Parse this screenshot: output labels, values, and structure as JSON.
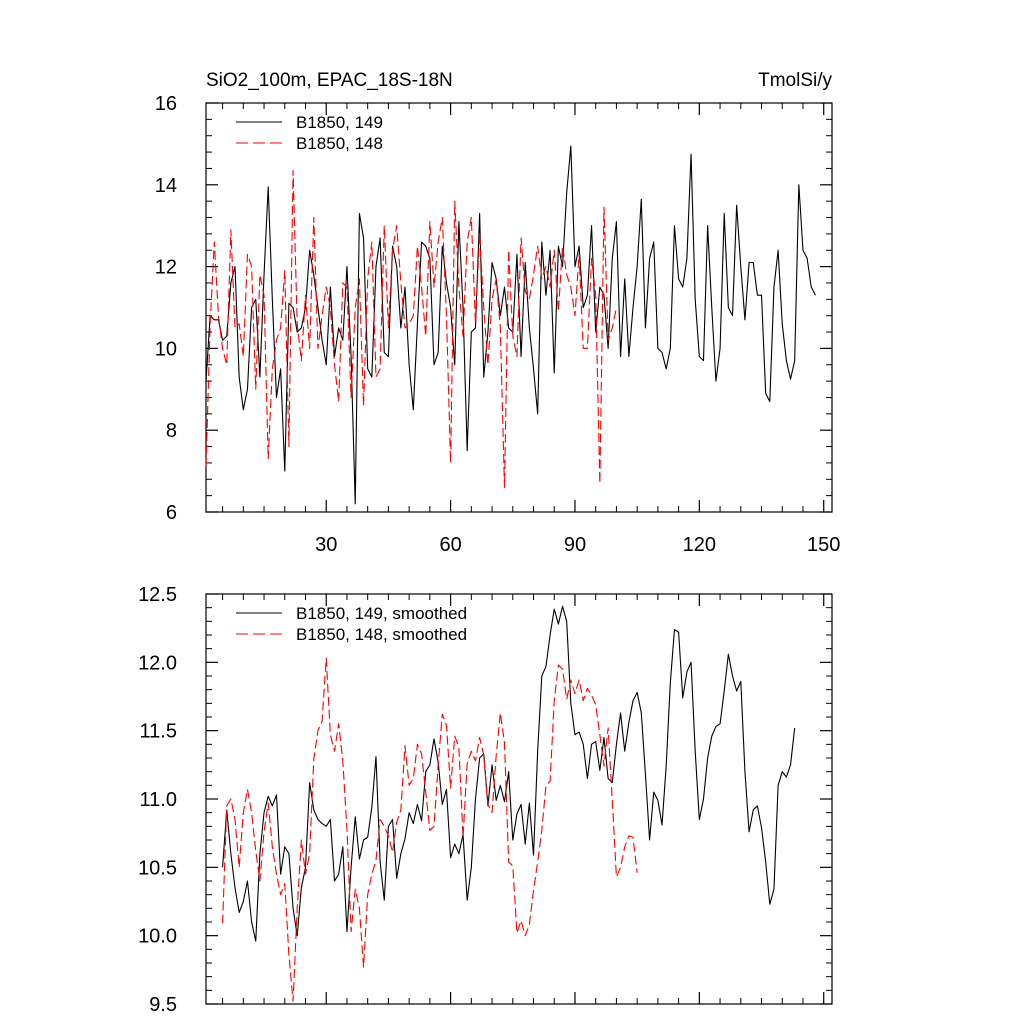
{
  "figure": {
    "title_left": "SiO2_100m, EPAC_18S-18N",
    "title_right": "TmolSi/y"
  },
  "colors": {
    "series_149": "#000000",
    "series_148": "#ff0000",
    "axes": "#000000",
    "background": "#ffffff"
  },
  "chart_data": [
    {
      "type": "line",
      "title": "SiO2_100m, EPAC_18S-18N",
      "units": "TmolSi/y",
      "xlabel": "",
      "ylabel": "",
      "xlim": [
        1,
        152
      ],
      "ylim": [
        6,
        16
      ],
      "x_ticks": [
        30,
        60,
        90,
        120,
        150
      ],
      "x_tick_labels": [
        "30",
        "60",
        "90",
        "120",
        "150"
      ],
      "y_ticks": [
        6,
        8,
        10,
        12,
        14,
        16
      ],
      "y_tick_labels": [
        "6",
        "8",
        "10",
        "12",
        "14",
        "16"
      ],
      "legend_position": "top-left",
      "series": [
        {
          "name": "B1850, 149",
          "color": "#000000",
          "dash": "solid",
          "x_start": 1,
          "values": [
            9.2,
            10.8,
            10.7,
            10.7,
            10.2,
            10.3,
            11.6,
            12.0,
            9.3,
            8.5,
            9.0,
            11.0,
            11.2,
            9.3,
            11.8,
            13.95,
            11.2,
            8.8,
            9.5,
            7.0,
            11.1,
            11.0,
            10.4,
            10.5,
            11.0,
            12.4,
            11.8,
            11.0,
            10.2,
            9.6,
            11.5,
            9.8,
            10.5,
            10.2,
            12.0,
            9.8,
            6.2,
            13.3,
            12.7,
            9.5,
            9.3,
            12.0,
            12.7,
            9.9,
            9.8,
            12.5,
            12.0,
            10.5,
            11.5,
            9.6,
            8.5,
            10.6,
            12.6,
            12.5,
            12.2,
            9.6,
            9.9,
            12.5,
            11.6,
            11.0,
            9.6,
            13.1,
            11.0,
            7.5,
            10.4,
            10.5,
            13.3,
            9.3,
            10.4,
            12.1,
            11.7,
            10.8,
            11.5,
            10.5,
            10.4,
            12.3,
            9.8,
            12.1,
            10.5,
            9.5,
            8.4,
            12.6,
            11.3,
            12.4,
            9.4,
            12.5,
            12.0,
            13.8,
            14.95,
            12.0,
            12.5,
            11.0,
            11.3,
            13.0,
            10.4,
            11.5,
            11.3,
            10.0,
            12.2,
            13.1,
            9.8,
            11.7,
            9.8,
            11.0,
            12.0,
            13.65,
            10.5,
            12.2,
            12.6,
            10.0,
            9.9,
            9.5,
            10.0,
            13.0,
            11.7,
            11.5,
            12.2,
            14.75,
            11.2,
            9.8,
            9.7,
            13.0,
            11.0,
            9.2,
            10.0,
            13.3,
            11.0,
            10.8,
            13.5,
            12.0,
            10.7,
            12.1,
            12.1,
            11.3,
            11.3,
            8.9,
            8.7,
            11.5,
            12.4,
            10.6,
            9.7,
            9.25,
            9.7,
            14.0,
            12.4,
            12.2,
            11.5,
            11.3
          ]
        },
        {
          "name": "B1850, 148",
          "color": "#ff0000",
          "dash": "dashed",
          "x_start": 1,
          "values": [
            7.1,
            10.6,
            12.6,
            10.8,
            10.0,
            9.6,
            12.9,
            10.5,
            10.6,
            9.8,
            12.3,
            12.0,
            9.0,
            11.8,
            11.3,
            7.3,
            9.5,
            10.2,
            10.5,
            11.9,
            7.6,
            14.35,
            10.6,
            9.7,
            11.3,
            10.0,
            13.2,
            10.0,
            10.8,
            11.5,
            11.0,
            9.6,
            8.7,
            11.6,
            11.5,
            8.8,
            11.0,
            11.7,
            8.6,
            11.7,
            12.6,
            9.3,
            9.5,
            13.0,
            10.5,
            12.4,
            13.0,
            11.6,
            10.5,
            10.6,
            10.8,
            12.5,
            11.5,
            10.3,
            13.1,
            11.5,
            12.6,
            13.2,
            10.8,
            7.2,
            13.6,
            11.5,
            10.3,
            12.6,
            13.2,
            10.6,
            12.8,
            11.0,
            9.6,
            11.2,
            11.7,
            10.5,
            6.6,
            12.4,
            10.3,
            9.8,
            12.7,
            11.4,
            11.2,
            11.8,
            12.5,
            11.7,
            12.0,
            11.5,
            12.4,
            10.9,
            12.5,
            11.8,
            11.5,
            10.8,
            12.3,
            10.0,
            10.0,
            12.2,
            11.3,
            6.7,
            13.45,
            10.2,
            10.5,
            11.0
          ]
        }
      ]
    },
    {
      "type": "line",
      "title": "",
      "xlabel": "",
      "ylabel": "",
      "xlim": [
        1,
        152
      ],
      "ylim": [
        9.5,
        12.5
      ],
      "x_ticks": [
        30,
        60,
        90,
        120,
        150
      ],
      "x_tick_labels": [],
      "y_ticks": [
        9.5,
        10.0,
        10.5,
        11.0,
        11.5,
        12.0,
        12.5
      ],
      "y_tick_labels": [
        "9.5",
        "10.0",
        "10.5",
        "11.0",
        "11.5",
        "12.0",
        "12.5"
      ],
      "legend_position": "top-left",
      "series": [
        {
          "name": "B1850, 149, smoothed",
          "color": "#000000",
          "dash": "solid",
          "x_start": 5,
          "values": [
            10.5,
            10.92,
            10.6,
            10.35,
            10.17,
            10.25,
            10.4,
            10.1,
            9.96,
            10.6,
            10.9,
            11.02,
            10.95,
            11.03,
            10.45,
            10.65,
            10.6,
            10.2,
            10.0,
            10.35,
            10.5,
            11.12,
            10.92,
            10.85,
            10.82,
            10.8,
            10.85,
            10.4,
            10.45,
            10.65,
            10.03,
            10.5,
            10.87,
            10.56,
            10.7,
            10.72,
            10.94,
            11.31,
            10.54,
            10.26,
            10.8,
            10.85,
            10.42,
            10.6,
            10.71,
            10.9,
            10.82,
            10.96,
            10.84,
            11.2,
            11.25,
            11.44,
            11.27,
            10.96,
            11.07,
            10.57,
            10.67,
            10.6,
            10.74,
            10.26,
            10.5,
            11.0,
            11.3,
            11.33,
            10.95,
            11.25,
            10.99,
            11.1,
            10.98,
            11.2,
            10.7,
            10.89,
            10.96,
            10.67,
            10.97,
            10.59,
            11.35,
            11.9,
            11.97,
            12.2,
            12.39,
            12.28,
            12.41,
            12.3,
            11.7,
            11.47,
            11.49,
            11.4,
            11.15,
            11.4,
            11.42,
            11.21,
            11.45,
            11.15,
            11.12,
            11.4,
            11.63,
            11.35,
            11.56,
            11.72,
            11.78,
            11.63,
            11.18,
            10.7,
            11.05,
            10.99,
            10.81,
            11.24,
            11.85,
            12.24,
            12.22,
            11.74,
            11.93,
            12.0,
            11.35,
            10.85,
            11.0,
            11.3,
            11.46,
            11.53,
            11.55,
            11.79,
            12.06,
            11.9,
            11.79,
            11.86,
            11.2,
            10.76,
            10.92,
            10.95,
            10.79,
            10.54,
            10.23,
            10.34,
            11.1,
            11.2,
            11.16,
            11.25,
            11.52
          ]
        },
        {
          "name": "B1850, 148, smoothed",
          "color": "#ff0000",
          "dash": "dashed",
          "x_start": 5,
          "values": [
            10.09,
            10.95,
            11.0,
            10.85,
            10.5,
            10.9,
            11.07,
            10.9,
            10.62,
            10.4,
            10.76,
            10.97,
            10.65,
            10.45,
            10.3,
            10.38,
            9.86,
            9.52,
            10.2,
            10.7,
            10.45,
            10.6,
            11.29,
            11.5,
            11.57,
            12.03,
            11.47,
            11.35,
            11.55,
            11.28,
            10.78,
            10.03,
            10.34,
            10.2,
            9.77,
            10.3,
            10.45,
            10.55,
            10.85,
            10.8,
            10.73,
            10.61,
            10.83,
            10.92,
            11.39,
            11.1,
            11.15,
            11.4,
            11.33,
            11.05,
            10.77,
            10.8,
            11.25,
            11.62,
            11.54,
            11.08,
            11.46,
            11.38,
            10.72,
            11.26,
            11.35,
            11.28,
            11.45,
            11.32,
            10.96,
            10.9,
            11.32,
            11.63,
            11.41,
            10.54,
            10.51,
            10.02,
            10.11,
            10.0,
            10.08,
            10.33,
            10.54,
            10.77,
            11.1,
            11.13,
            11.72,
            11.98,
            11.95,
            11.73,
            11.87,
            11.77,
            11.87,
            11.72,
            11.81,
            11.76,
            11.69,
            11.47,
            11.24,
            11.52,
            10.99,
            10.43,
            10.5,
            10.65,
            10.73,
            10.72,
            10.46
          ]
        }
      ]
    }
  ]
}
